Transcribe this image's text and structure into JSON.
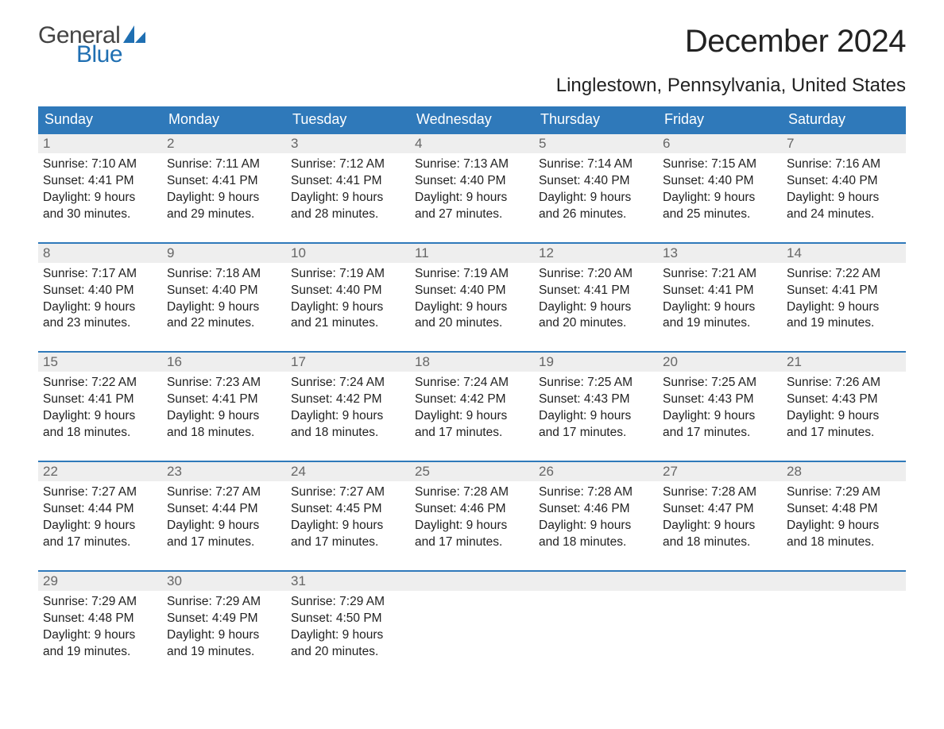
{
  "brand": {
    "word1": "General",
    "word2": "Blue",
    "word1_color": "#444444",
    "word2_color": "#1f6fb2",
    "sail_color": "#1f6fb2"
  },
  "title": {
    "month_year": "December 2024",
    "location": "Linglestown, Pennsylvania, United States",
    "title_fontsize": 40,
    "location_fontsize": 24
  },
  "colors": {
    "header_bg": "#2f79ba",
    "header_text": "#ffffff",
    "week_rule": "#2f79ba",
    "daynum_bg": "#eeeeee",
    "daynum_text": "#666666",
    "body_text": "#222222",
    "background": "#ffffff"
  },
  "day_names": [
    "Sunday",
    "Monday",
    "Tuesday",
    "Wednesday",
    "Thursday",
    "Friday",
    "Saturday"
  ],
  "weeks": [
    [
      {
        "n": "1",
        "sunrise": "7:10 AM",
        "sunset": "4:41 PM",
        "daylight": "9 hours and 30 minutes."
      },
      {
        "n": "2",
        "sunrise": "7:11 AM",
        "sunset": "4:41 PM",
        "daylight": "9 hours and 29 minutes."
      },
      {
        "n": "3",
        "sunrise": "7:12 AM",
        "sunset": "4:41 PM",
        "daylight": "9 hours and 28 minutes."
      },
      {
        "n": "4",
        "sunrise": "7:13 AM",
        "sunset": "4:40 PM",
        "daylight": "9 hours and 27 minutes."
      },
      {
        "n": "5",
        "sunrise": "7:14 AM",
        "sunset": "4:40 PM",
        "daylight": "9 hours and 26 minutes."
      },
      {
        "n": "6",
        "sunrise": "7:15 AM",
        "sunset": "4:40 PM",
        "daylight": "9 hours and 25 minutes."
      },
      {
        "n": "7",
        "sunrise": "7:16 AM",
        "sunset": "4:40 PM",
        "daylight": "9 hours and 24 minutes."
      }
    ],
    [
      {
        "n": "8",
        "sunrise": "7:17 AM",
        "sunset": "4:40 PM",
        "daylight": "9 hours and 23 minutes."
      },
      {
        "n": "9",
        "sunrise": "7:18 AM",
        "sunset": "4:40 PM",
        "daylight": "9 hours and 22 minutes."
      },
      {
        "n": "10",
        "sunrise": "7:19 AM",
        "sunset": "4:40 PM",
        "daylight": "9 hours and 21 minutes."
      },
      {
        "n": "11",
        "sunrise": "7:19 AM",
        "sunset": "4:40 PM",
        "daylight": "9 hours and 20 minutes."
      },
      {
        "n": "12",
        "sunrise": "7:20 AM",
        "sunset": "4:41 PM",
        "daylight": "9 hours and 20 minutes."
      },
      {
        "n": "13",
        "sunrise": "7:21 AM",
        "sunset": "4:41 PM",
        "daylight": "9 hours and 19 minutes."
      },
      {
        "n": "14",
        "sunrise": "7:22 AM",
        "sunset": "4:41 PM",
        "daylight": "9 hours and 19 minutes."
      }
    ],
    [
      {
        "n": "15",
        "sunrise": "7:22 AM",
        "sunset": "4:41 PM",
        "daylight": "9 hours and 18 minutes."
      },
      {
        "n": "16",
        "sunrise": "7:23 AM",
        "sunset": "4:41 PM",
        "daylight": "9 hours and 18 minutes."
      },
      {
        "n": "17",
        "sunrise": "7:24 AM",
        "sunset": "4:42 PM",
        "daylight": "9 hours and 18 minutes."
      },
      {
        "n": "18",
        "sunrise": "7:24 AM",
        "sunset": "4:42 PM",
        "daylight": "9 hours and 17 minutes."
      },
      {
        "n": "19",
        "sunrise": "7:25 AM",
        "sunset": "4:43 PM",
        "daylight": "9 hours and 17 minutes."
      },
      {
        "n": "20",
        "sunrise": "7:25 AM",
        "sunset": "4:43 PM",
        "daylight": "9 hours and 17 minutes."
      },
      {
        "n": "21",
        "sunrise": "7:26 AM",
        "sunset": "4:43 PM",
        "daylight": "9 hours and 17 minutes."
      }
    ],
    [
      {
        "n": "22",
        "sunrise": "7:27 AM",
        "sunset": "4:44 PM",
        "daylight": "9 hours and 17 minutes."
      },
      {
        "n": "23",
        "sunrise": "7:27 AM",
        "sunset": "4:44 PM",
        "daylight": "9 hours and 17 minutes."
      },
      {
        "n": "24",
        "sunrise": "7:27 AM",
        "sunset": "4:45 PM",
        "daylight": "9 hours and 17 minutes."
      },
      {
        "n": "25",
        "sunrise": "7:28 AM",
        "sunset": "4:46 PM",
        "daylight": "9 hours and 17 minutes."
      },
      {
        "n": "26",
        "sunrise": "7:28 AM",
        "sunset": "4:46 PM",
        "daylight": "9 hours and 18 minutes."
      },
      {
        "n": "27",
        "sunrise": "7:28 AM",
        "sunset": "4:47 PM",
        "daylight": "9 hours and 18 minutes."
      },
      {
        "n": "28",
        "sunrise": "7:29 AM",
        "sunset": "4:48 PM",
        "daylight": "9 hours and 18 minutes."
      }
    ],
    [
      {
        "n": "29",
        "sunrise": "7:29 AM",
        "sunset": "4:48 PM",
        "daylight": "9 hours and 19 minutes."
      },
      {
        "n": "30",
        "sunrise": "7:29 AM",
        "sunset": "4:49 PM",
        "daylight": "9 hours and 19 minutes."
      },
      {
        "n": "31",
        "sunrise": "7:29 AM",
        "sunset": "4:50 PM",
        "daylight": "9 hours and 20 minutes."
      },
      null,
      null,
      null,
      null
    ]
  ],
  "labels": {
    "sunrise": "Sunrise:",
    "sunset": "Sunset:",
    "daylight": "Daylight:"
  }
}
